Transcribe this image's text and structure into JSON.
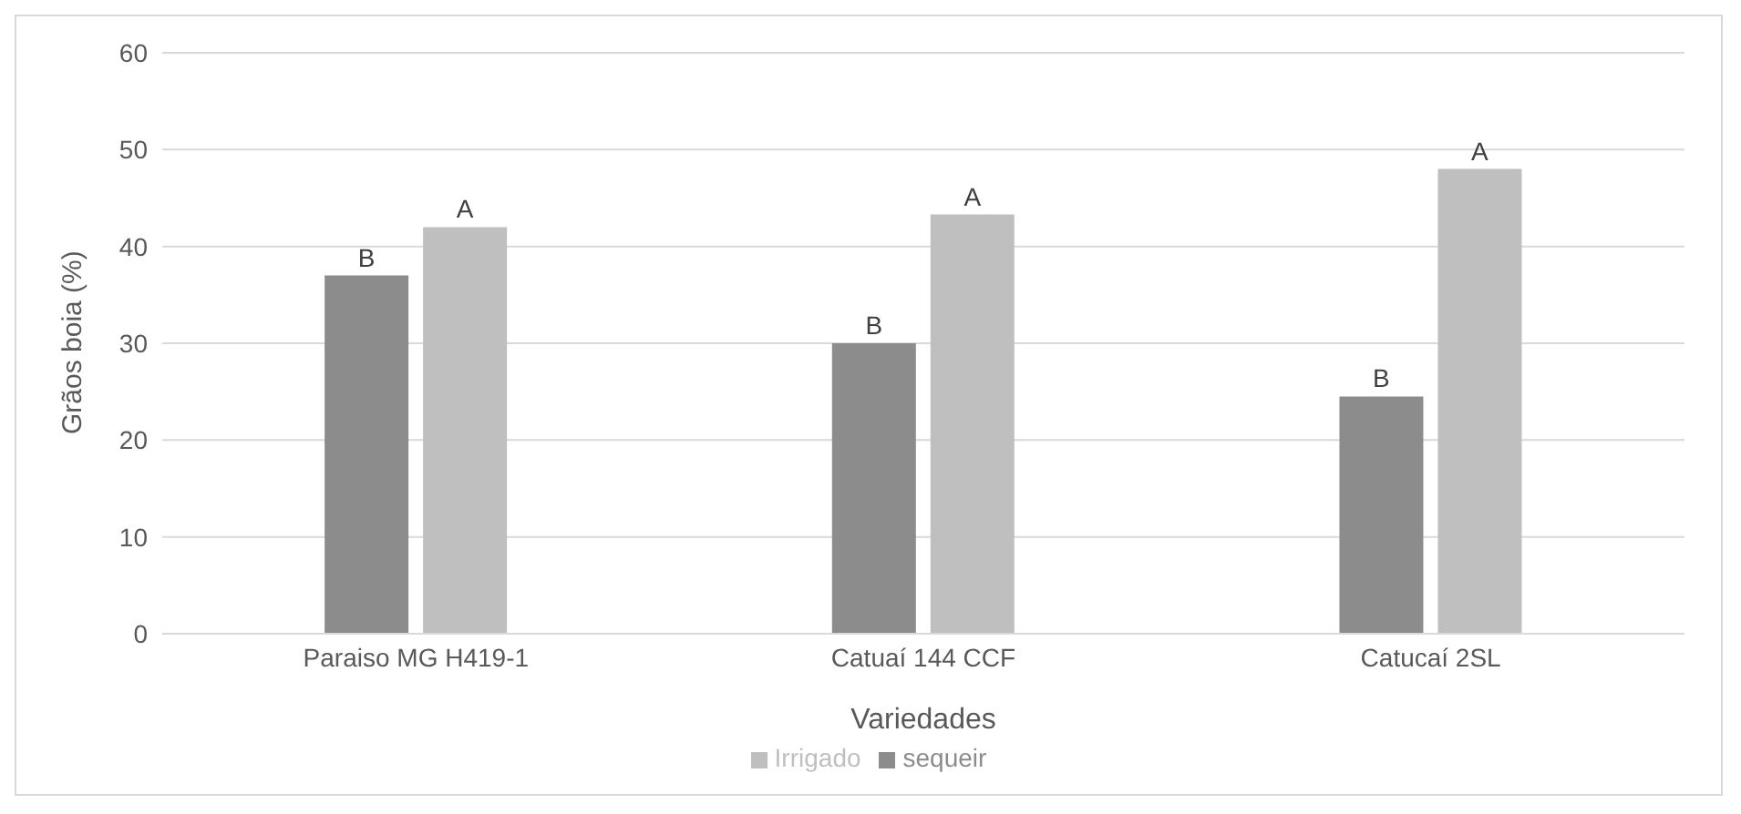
{
  "chart_data": {
    "type": "bar",
    "xlabel": "Variedades",
    "ylabel": "Grãos boia (%)",
    "categories": [
      "Paraiso MG H419-1",
      "Catuaí 144 CCF",
      "Catucaí 2SL"
    ],
    "series": [
      {
        "name": "sequeir",
        "color": "#8c8c8c",
        "values": [
          37,
          30,
          24.5
        ],
        "value_labels": [
          "B",
          "B",
          "B"
        ]
      },
      {
        "name": "Irrigado",
        "color": "#bfbfbf",
        "values": [
          42,
          43.3,
          48
        ],
        "value_labels": [
          "A",
          "A",
          "A"
        ]
      }
    ],
    "ylim": [
      0,
      60
    ],
    "yticks": [
      0,
      10,
      20,
      30,
      40,
      50,
      60
    ],
    "grid": "y",
    "legend": "bottom"
  }
}
